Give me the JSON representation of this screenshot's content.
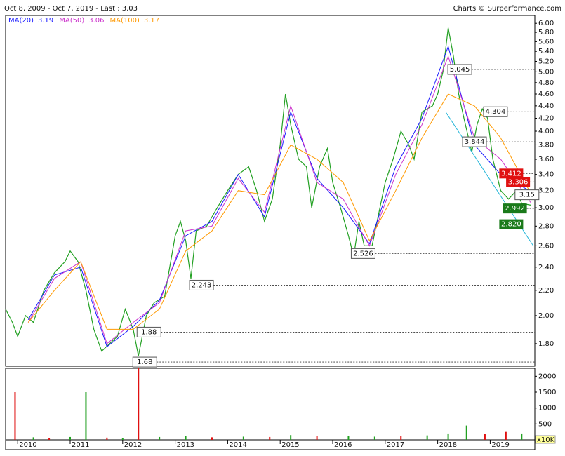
{
  "chart_data": [
    {
      "type": "line",
      "title": "Oct 8, 2009 - Oct 7, 2019 - Last : 3.03",
      "source": "Charts © Surperformance.com",
      "log_y": true,
      "xlim": [
        2009.77,
        2019.85
      ],
      "ylim": [
        1.654,
        6.18
      ],
      "yticks": [
        {
          "value": 1.8,
          "label": "1.80"
        },
        {
          "value": 2.0,
          "label": "2.00"
        },
        {
          "value": 2.2,
          "label": "2.20"
        },
        {
          "value": 2.4,
          "label": "2.40"
        },
        {
          "value": 2.6,
          "label": "2.60"
        },
        {
          "value": 2.8,
          "label": "2.80"
        },
        {
          "value": 3.0,
          "label": "3.00"
        },
        {
          "value": 3.2,
          "label": "3.20"
        },
        {
          "value": 3.4,
          "label": "3.40"
        },
        {
          "value": 3.6,
          "label": "3.60"
        },
        {
          "value": 3.8,
          "label": "3.80"
        },
        {
          "value": 4.0,
          "label": "4.00"
        },
        {
          "value": 4.2,
          "label": "4.20"
        },
        {
          "value": 4.4,
          "label": "4.40"
        },
        {
          "value": 4.6,
          "label": "4.60"
        },
        {
          "value": 4.8,
          "label": "4.80"
        },
        {
          "value": 5.0,
          "label": "5.00"
        },
        {
          "value": 5.2,
          "label": "5.20"
        },
        {
          "value": 5.4,
          "label": "5.40"
        },
        {
          "value": 5.6,
          "label": "5.60"
        },
        {
          "value": 5.8,
          "label": "5.80"
        },
        {
          "value": 6.0,
          "label": "6.00"
        }
      ],
      "series": [
        {
          "color": "#22a022",
          "width": 1.2,
          "x": [
            2009.77,
            2009.9,
            2010.0,
            2010.15,
            2010.3,
            2010.5,
            2010.7,
            2010.9,
            2011.0,
            2011.15,
            2011.3,
            2011.45,
            2011.6,
            2011.75,
            2011.9,
            2012.05,
            2012.2,
            2012.3,
            2012.45,
            2012.6,
            2012.8,
            2013.0,
            2013.1,
            2013.2,
            2013.3,
            2013.4,
            2013.6,
            2013.8,
            2014.0,
            2014.2,
            2014.4,
            2014.55,
            2014.7,
            2014.85,
            2015.0,
            2015.1,
            2015.2,
            2015.35,
            2015.5,
            2015.6,
            2015.75,
            2015.9,
            2016.0,
            2016.15,
            2016.3,
            2016.4,
            2016.5,
            2016.6,
            2016.75,
            2016.9,
            2017.0,
            2017.15,
            2017.3,
            2017.45,
            2017.55,
            2017.7,
            2017.9,
            2018.0,
            2018.1,
            2018.2,
            2018.3,
            2018.4,
            2018.5,
            2018.65,
            2018.75,
            2018.85,
            2018.95,
            2019.05,
            2019.2,
            2019.35,
            2019.5,
            2019.6,
            2019.77
          ],
          "values": [
            2.05,
            1.95,
            1.85,
            2.0,
            1.95,
            2.2,
            2.35,
            2.45,
            2.55,
            2.45,
            2.2,
            1.9,
            1.75,
            1.8,
            1.85,
            2.05,
            1.9,
            1.72,
            2.0,
            2.1,
            2.15,
            2.7,
            2.85,
            2.65,
            2.3,
            2.75,
            2.8,
            3.0,
            3.2,
            3.4,
            3.5,
            3.2,
            2.85,
            3.1,
            3.8,
            4.6,
            4.1,
            3.6,
            3.5,
            3.0,
            3.5,
            3.75,
            3.3,
            3.0,
            2.7,
            2.5,
            2.85,
            2.6,
            2.6,
            3.0,
            3.3,
            3.6,
            4.0,
            3.8,
            3.6,
            4.3,
            4.4,
            4.6,
            5.0,
            5.9,
            5.3,
            4.6,
            4.2,
            3.7,
            4.1,
            4.35,
            4.2,
            3.6,
            3.2,
            3.1,
            3.2,
            3.05,
            3.03
          ]
        },
        {
          "name": "MA(20)",
          "color": "#1a1aff",
          "width": 1,
          "x": [
            2010.2,
            2010.7,
            2011.2,
            2011.7,
            2012.2,
            2012.7,
            2013.2,
            2013.7,
            2014.2,
            2014.7,
            2015.2,
            2015.7,
            2016.2,
            2016.7,
            2017.2,
            2017.7,
            2018.2,
            2018.7,
            2019.2,
            2019.77
          ],
          "values": [
            1.97,
            2.33,
            2.4,
            1.78,
            1.92,
            2.12,
            2.7,
            2.85,
            3.4,
            2.9,
            4.3,
            3.35,
            3.0,
            2.62,
            3.5,
            4.2,
            5.5,
            3.8,
            3.4,
            3.19
          ]
        },
        {
          "name": "MA(50)",
          "color": "#cc33cc",
          "width": 1,
          "x": [
            2010.2,
            2010.7,
            2011.2,
            2011.7,
            2012.2,
            2012.7,
            2013.2,
            2013.7,
            2014.2,
            2014.7,
            2015.2,
            2015.7,
            2016.2,
            2016.7,
            2017.2,
            2017.7,
            2018.2,
            2018.7,
            2019.2,
            2019.77
          ],
          "values": [
            1.95,
            2.3,
            2.45,
            1.8,
            1.95,
            2.1,
            2.75,
            2.8,
            3.35,
            2.95,
            4.4,
            3.3,
            3.1,
            2.6,
            3.4,
            4.1,
            5.3,
            3.9,
            3.6,
            3.06
          ]
        },
        {
          "name": "MA(100)",
          "color": "#ff9900",
          "width": 1,
          "x": [
            2010.2,
            2010.7,
            2011.2,
            2011.7,
            2012.2,
            2012.7,
            2013.2,
            2013.7,
            2014.2,
            2014.7,
            2015.2,
            2015.7,
            2016.2,
            2016.7,
            2017.2,
            2017.7,
            2018.2,
            2018.7,
            2019.2,
            2019.77
          ],
          "values": [
            1.95,
            2.2,
            2.45,
            1.9,
            1.9,
            2.05,
            2.55,
            2.75,
            3.2,
            3.15,
            3.8,
            3.6,
            3.3,
            2.65,
            3.2,
            3.9,
            4.6,
            4.4,
            3.9,
            3.17
          ]
        },
        {
          "color": "#22b5d8",
          "width": 1,
          "x": [
            2018.16,
            2019.82
          ],
          "values": [
            4.29,
            2.6
          ]
        }
      ],
      "levels": [
        {
          "value": 5.045,
          "x": 2018.22
        },
        {
          "value": 4.304,
          "x": 2018.9
        },
        {
          "value": 3.844,
          "x": 2018.5
        },
        {
          "value": 3.412,
          "x": 2019.2,
          "color": "#e01010"
        },
        {
          "value": 3.306,
          "x": 2019.33,
          "color": "#e01010"
        },
        {
          "value": 3.15,
          "x": 2019.5
        },
        {
          "value": 2.992,
          "x": 2019.27,
          "color": "#1a7a1a"
        },
        {
          "value": {
            "value": 2.82,
            "label": "2.820"
          },
          "x": 2019.2,
          "color": "#1a7a1a"
        },
        {
          "value": 2.526,
          "x": 2016.38
        },
        {
          "value": 2.243,
          "x": 2013.3
        },
        {
          "value": 1.88,
          "x": 2012.3
        },
        {
          "value": 1.68,
          "x": 2012.22
        }
      ]
    },
    {
      "type": "bar",
      "ylabel": "x10K",
      "xlim": [
        2009.77,
        2019.85
      ],
      "xticks": [
        2010,
        2011,
        2012,
        2013,
        2014,
        2015,
        2016,
        2017,
        2018,
        2019
      ],
      "ylim": [
        0,
        2250
      ],
      "yticks": [
        500,
        1000,
        1500,
        2000
      ],
      "x": [
        2009.95,
        2010.3,
        2010.6,
        2011.0,
        2011.3,
        2011.7,
        2012.0,
        2012.3,
        2012.7,
        2013.2,
        2013.7,
        2014.3,
        2014.8,
        2015.2,
        2015.7,
        2016.3,
        2016.8,
        2017.3,
        2017.8,
        2018.2,
        2018.55,
        2018.9,
        2019.3,
        2019.6
      ],
      "values": [
        1500,
        80,
        60,
        90,
        1500,
        70,
        60,
        2250,
        90,
        120,
        80,
        100,
        90,
        150,
        110,
        130,
        100,
        120,
        140,
        200,
        450,
        180,
        250,
        200
      ],
      "colors": [
        "#e01010",
        "#22a022",
        "#e01010",
        "#22a022",
        "#22a022",
        "#e01010",
        "#22a022",
        "#e01010",
        "#22a022",
        "#22a022",
        "#e01010",
        "#22a022",
        "#e01010",
        "#22a022",
        "#e01010",
        "#22a022",
        "#22a022",
        "#e01010",
        "#22a022",
        "#22a022",
        "#22a022",
        "#e01010",
        "#e01010",
        "#22a022"
      ]
    }
  ]
}
